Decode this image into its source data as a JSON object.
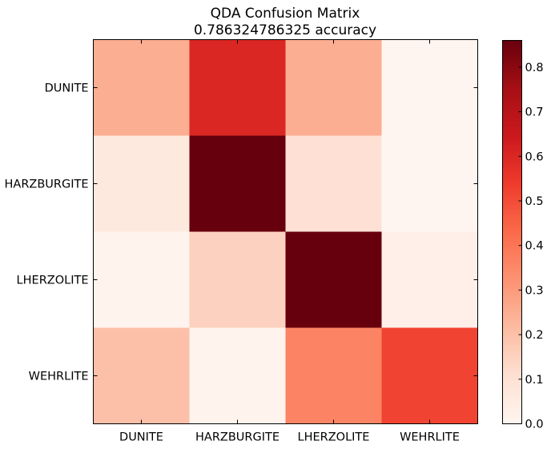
{
  "chart_data": {
    "type": "heatmap",
    "title": "QDA Confusion Matrix",
    "subtitle": "0.786324786325 accuracy",
    "xlabel": "",
    "ylabel": "",
    "x_categories": [
      "DUNITE",
      "HARZBURGITE",
      "LHERZOLITE",
      "WEHRLITE"
    ],
    "y_categories": [
      "DUNITE",
      "HARZBURGITE",
      "LHERZOLITE",
      "WEHRLITE"
    ],
    "values": [
      [
        0.25,
        0.6,
        0.25,
        0.0
      ],
      [
        0.06,
        0.86,
        0.1,
        0.0
      ],
      [
        0.01,
        0.15,
        0.86,
        0.03
      ],
      [
        0.2,
        0.01,
        0.36,
        0.52
      ]
    ],
    "colormap": "Reds",
    "colorbar": {
      "range": [
        0.0,
        0.86
      ],
      "ticks": [
        "0.0",
        "0.1",
        "0.2",
        "0.3",
        "0.4",
        "0.5",
        "0.6",
        "0.7",
        "0.8"
      ]
    },
    "grid": false,
    "legend": "colorbar-right"
  }
}
